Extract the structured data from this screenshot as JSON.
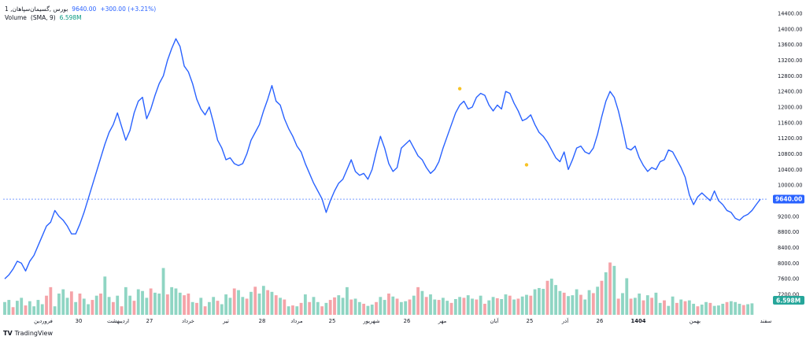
{
  "legend": {
    "symbol": "بورس ,گسیمان‌سپاهان, 1",
    "price": "9640.00",
    "change": "+300.00 (+3.21%)",
    "volume_label": "Volume",
    "volume_sma": "(SMA, 9)",
    "volume_value": "6.598M"
  },
  "watermark": {
    "text": "TradingView",
    "logo": "TV"
  },
  "colors": {
    "line": "#2962ff",
    "volume_up": "#8fd5c3",
    "volume_down": "#f5a3a8",
    "last_price_tag": "#2962ff",
    "volume_tag": "#26a69a",
    "marker": "#f7c325"
  },
  "chart_data": {
    "type": "line",
    "y_axis": {
      "ticks": [
        "7200.00",
        "7600.00",
        "8000.00",
        "8400.00",
        "8800.00",
        "9200.00",
        "9600.00",
        "10000.00",
        "10400.00",
        "10800.00",
        "11200.00",
        "11600.00",
        "12000.00",
        "12400.00",
        "12800.00",
        "13200.00",
        "13600.00",
        "14000.00",
        "14400.00"
      ],
      "range": [
        7000,
        14500
      ]
    },
    "x_axis": {
      "labels": [
        "فروردین",
        "30",
        "اردیبهشت",
        "27",
        "خرداد",
        "تیر",
        "28",
        "مرداد",
        "25",
        "شهریور",
        "26",
        "مهر",
        "آبان",
        "25",
        "آذر",
        "26",
        "1404",
        "بهمن",
        "سفند"
      ]
    },
    "last_price": "9640.00",
    "last_volume": "6.598M",
    "markers": [
      {
        "index": 109,
        "value": 12450
      },
      {
        "index": 125,
        "value": 10500
      }
    ],
    "price": [
      7600,
      7700,
      7850,
      8050,
      8000,
      7800,
      8050,
      8200,
      8450,
      8700,
      8950,
      9050,
      9350,
      9200,
      9100,
      8950,
      8750,
      8750,
      9000,
      9300,
      9650,
      10000,
      10350,
      10700,
      11050,
      11350,
      11550,
      11850,
      11500,
      11150,
      11400,
      11850,
      12150,
      12250,
      11700,
      11950,
      12300,
      12600,
      12800,
      13200,
      13500,
      13750,
      13550,
      13050,
      12900,
      12600,
      12200,
      11950,
      11800,
      12000,
      11600,
      11150,
      10950,
      10650,
      10700,
      10550,
      10500,
      10550,
      10800,
      11150,
      11350,
      11550,
      11900,
      12200,
      12550,
      12150,
      12050,
      11700,
      11450,
      11250,
      11000,
      10850,
      10550,
      10300,
      10050,
      9850,
      9650,
      9300,
      9600,
      9850,
      10050,
      10150,
      10400,
      10650,
      10350,
      10250,
      10300,
      10150,
      10400,
      10850,
      11250,
      10950,
      10550,
      10350,
      10450,
      10950,
      11050,
      11150,
      10950,
      10750,
      10650,
      10450,
      10300,
      10400,
      10600,
      10950,
      11250,
      11550,
      11850,
      12050,
      12150,
      11950,
      12000,
      12250,
      12350,
      12300,
      12050,
      11900,
      12050,
      11950,
      12400,
      12350,
      12100,
      11900,
      11650,
      11700,
      11800,
      11550,
      11350,
      11250,
      11100,
      10900,
      10700,
      10600,
      10850,
      10400,
      10650,
      10950,
      11000,
      10850,
      10800,
      10950,
      11300,
      11750,
      12150,
      12400,
      12250,
      11900,
      11450,
      10950,
      10900,
      11000,
      10700,
      10500,
      10350,
      10450,
      10400,
      10600,
      10650,
      10900,
      10850,
      10650,
      10450,
      10200,
      9750,
      9500,
      9700,
      9800,
      9700,
      9600,
      9850,
      9600,
      9500,
      9350,
      9300,
      9150,
      9100,
      9200,
      9250,
      9350,
      9500,
      9640
    ],
    "volume_scale": {
      "min": 7000,
      "max": 8850
    },
    "volume": [
      7300,
      7350,
      7180,
      7330,
      7400,
      7220,
      7320,
      7200,
      7350,
      7250,
      7450,
      7650,
      7200,
      7500,
      7600,
      7400,
      7550,
      7300,
      7500,
      7380,
      7250,
      7350,
      7450,
      7500,
      7900,
      7420,
      7300,
      7450,
      7200,
      7650,
      7450,
      7330,
      7600,
      7560,
      7400,
      7620,
      7520,
      7500,
      8100,
      7480,
      7650,
      7620,
      7520,
      7460,
      7500,
      7300,
      7280,
      7400,
      7200,
      7300,
      7420,
      7330,
      7250,
      7480,
      7400,
      7620,
      7580,
      7420,
      7380,
      7540,
      7660,
      7500,
      7680,
      7580,
      7540,
      7460,
      7400,
      7360,
      7200,
      7220,
      7200,
      7280,
      7480,
      7300,
      7420,
      7300,
      7200,
      7280,
      7350,
      7410,
      7460,
      7400,
      7650,
      7360,
      7380,
      7300,
      7260,
      7210,
      7240,
      7300,
      7420,
      7350,
      7500,
      7430,
      7380,
      7300,
      7320,
      7360,
      7450,
      7650,
      7560,
      7420,
      7480,
      7360,
      7350,
      7400,
      7330,
      7280,
      7370,
      7420,
      7400,
      7460,
      7380,
      7360,
      7450,
      7260,
      7340,
      7420,
      7390,
      7370,
      7480,
      7450,
      7360,
      7380,
      7430,
      7470,
      7450,
      7600,
      7630,
      7610,
      7800,
      7850,
      7700,
      7560,
      7520,
      7440,
      7460,
      7600,
      7470,
      7360,
      7580,
      7510,
      7660,
      7800,
      8000,
      8230,
      8150,
      7380,
      7510,
      7860,
      7380,
      7400,
      7500,
      7340,
      7460,
      7400,
      7520,
      7280,
      7340,
      7210,
      7430,
      7280,
      7360,
      7320,
      7340,
      7260,
      7200,
      7240,
      7300,
      7280,
      7210,
      7220,
      7260,
      7300,
      7320,
      7300,
      7260,
      7230,
      7250,
      7270
    ],
    "volume_up": [
      1,
      1,
      0,
      1,
      1,
      0,
      1,
      1,
      1,
      1,
      0,
      0,
      1,
      1,
      1,
      1,
      0,
      1,
      0,
      1,
      1,
      0,
      1,
      0,
      1,
      1,
      0,
      1,
      0,
      1,
      1,
      0,
      1,
      1,
      1,
      0,
      1,
      1,
      1,
      0,
      1,
      1,
      1,
      0,
      0,
      1,
      0,
      1,
      0,
      1,
      1,
      0,
      1,
      1,
      1,
      0,
      1,
      1,
      0,
      1,
      0,
      1,
      1,
      0,
      1,
      0,
      1,
      0,
      1,
      0,
      1,
      0,
      1,
      0,
      1,
      1,
      0,
      1,
      0,
      0,
      1,
      1,
      1,
      0,
      1,
      1,
      0,
      1,
      1,
      0,
      1,
      1,
      0,
      1,
      0,
      1,
      1,
      0,
      1,
      0,
      1,
      0,
      1,
      1,
      0,
      1,
      1,
      0,
      1,
      1,
      0,
      1,
      1,
      0,
      1,
      0,
      1,
      1,
      0,
      1,
      1,
      0,
      1,
      0,
      1,
      1,
      0,
      1,
      1,
      1,
      0,
      1,
      1,
      1,
      0,
      1,
      1,
      1,
      0,
      1,
      1,
      0,
      1,
      0,
      1,
      0,
      1,
      0,
      1,
      1,
      0,
      1,
      1,
      0,
      1,
      0,
      1,
      1,
      0,
      1,
      1,
      0,
      1,
      0,
      1,
      1,
      0,
      1,
      1,
      0,
      1,
      1,
      1,
      0,
      1,
      1,
      1,
      0,
      1,
      1
    ]
  }
}
